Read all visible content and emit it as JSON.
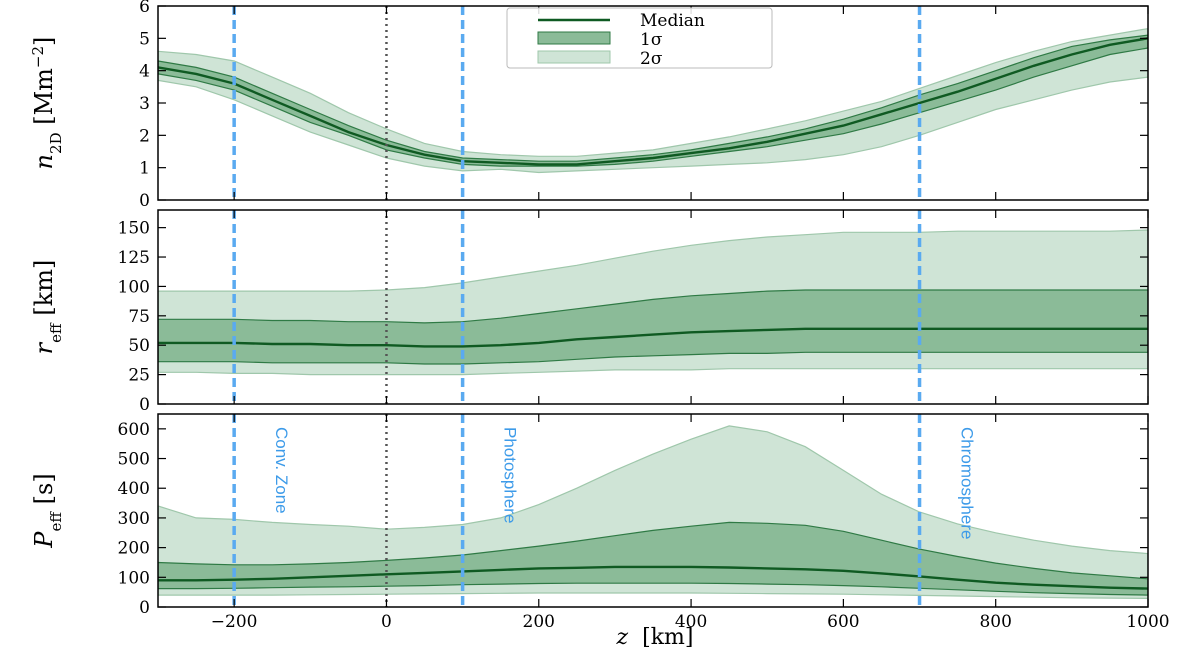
{
  "colors": {
    "median": "#0f5a22",
    "band1": "#8bbb98",
    "band1_edge": "#2f7a45",
    "band2": "#cfe4d6",
    "band2_edge": "#9fc7ab",
    "region_line": "#5aaaf0",
    "zero_line": "#555555"
  },
  "legend": {
    "median": "Median",
    "one_sigma": "1σ",
    "two_sigma": "2σ"
  },
  "chart_data": {
    "type": "line",
    "x_axis": {
      "label": "z",
      "unit": "[km]",
      "range": [
        -300,
        1000
      ],
      "ticks": [
        -200,
        0,
        200,
        400,
        600,
        800,
        1000
      ],
      "tick_labels": [
        "−200",
        "0",
        "200",
        "400",
        "600",
        "800",
        "1000"
      ]
    },
    "x": [
      -300,
      -250,
      -200,
      -150,
      -100,
      -50,
      0,
      50,
      100,
      150,
      200,
      250,
      300,
      350,
      400,
      450,
      500,
      550,
      600,
      650,
      700,
      750,
      800,
      850,
      900,
      950,
      1000
    ],
    "vertical_lines": [
      {
        "x": -200,
        "label": "Conv. Zone",
        "style": "dashed"
      },
      {
        "x": 0,
        "label": "",
        "style": "dotted"
      },
      {
        "x": 100,
        "label": "Photosphere",
        "style": "dashed"
      },
      {
        "x": 700,
        "label": "Chromosphere",
        "style": "dashed"
      }
    ],
    "panels": [
      {
        "ylabel_main": "n",
        "ylabel_sub": "2D",
        "ylabel_unit": "[Mm",
        "ylabel_sup": "−2",
        "ylabel_close": "]",
        "ylim": [
          0,
          6
        ],
        "yticks": [
          0,
          1,
          2,
          3,
          4,
          5,
          6
        ],
        "ytick_labels": [
          "0",
          "1",
          "2",
          "3",
          "4",
          "5",
          "6"
        ],
        "median": [
          4.1,
          3.9,
          3.6,
          3.1,
          2.6,
          2.1,
          1.7,
          1.4,
          1.2,
          1.15,
          1.1,
          1.1,
          1.2,
          1.3,
          1.45,
          1.6,
          1.8,
          2.05,
          2.3,
          2.65,
          3.0,
          3.35,
          3.75,
          4.15,
          4.5,
          4.8,
          5.0
        ],
        "s1_low": [
          3.9,
          3.7,
          3.4,
          2.9,
          2.4,
          2.0,
          1.55,
          1.3,
          1.1,
          1.05,
          1.05,
          1.05,
          1.1,
          1.2,
          1.35,
          1.5,
          1.65,
          1.85,
          2.05,
          2.35,
          2.7,
          3.05,
          3.4,
          3.8,
          4.15,
          4.5,
          4.7
        ],
        "s1_high": [
          4.3,
          4.1,
          3.8,
          3.3,
          2.8,
          2.3,
          1.85,
          1.5,
          1.3,
          1.25,
          1.2,
          1.2,
          1.3,
          1.4,
          1.55,
          1.75,
          1.95,
          2.2,
          2.5,
          2.85,
          3.25,
          3.6,
          4.0,
          4.4,
          4.75,
          4.95,
          5.1
        ],
        "s2_low": [
          3.7,
          3.5,
          3.1,
          2.6,
          2.1,
          1.7,
          1.3,
          1.05,
          0.9,
          0.95,
          0.85,
          0.9,
          0.95,
          1.0,
          1.05,
          1.1,
          1.15,
          1.25,
          1.4,
          1.65,
          2.0,
          2.4,
          2.8,
          3.1,
          3.4,
          3.65,
          3.8
        ],
        "s2_high": [
          4.6,
          4.5,
          4.3,
          3.8,
          3.3,
          2.7,
          2.2,
          1.75,
          1.5,
          1.4,
          1.35,
          1.35,
          1.45,
          1.55,
          1.75,
          1.95,
          2.2,
          2.45,
          2.75,
          3.05,
          3.45,
          3.85,
          4.25,
          4.6,
          4.9,
          5.1,
          5.3
        ]
      },
      {
        "ylabel_main": "r",
        "ylabel_sub": "eff",
        "ylabel_unit": "[km]",
        "ylabel_sup": "",
        "ylabel_close": "",
        "ylim": [
          0,
          165
        ],
        "yticks": [
          0,
          25,
          50,
          75,
          100,
          125,
          150
        ],
        "ytick_labels": [
          "0",
          "25",
          "50",
          "75",
          "100",
          "125",
          "150"
        ],
        "median": [
          52,
          52,
          52,
          51,
          51,
          50,
          50,
          49,
          49,
          50,
          52,
          55,
          57,
          59,
          61,
          62,
          63,
          64,
          64,
          64,
          64,
          64,
          64,
          64,
          64,
          64,
          64
        ],
        "s1_low": [
          36,
          36,
          36,
          35,
          35,
          35,
          35,
          34,
          34,
          35,
          36,
          38,
          40,
          41,
          42,
          43,
          43,
          44,
          44,
          44,
          44,
          44,
          44,
          44,
          44,
          44,
          44
        ],
        "s1_high": [
          72,
          72,
          72,
          71,
          71,
          70,
          70,
          69,
          70,
          73,
          77,
          81,
          85,
          89,
          92,
          94,
          96,
          97,
          97,
          97,
          97,
          97,
          97,
          97,
          97,
          97,
          97
        ],
        "s2_low": [
          27,
          27,
          26,
          26,
          25,
          25,
          25,
          25,
          25,
          26,
          27,
          28,
          29,
          29,
          29,
          30,
          30,
          30,
          30,
          30,
          30,
          30,
          30,
          30,
          30,
          30,
          30
        ],
        "s2_high": [
          96,
          96,
          96,
          96,
          96,
          96,
          97,
          99,
          103,
          108,
          113,
          118,
          124,
          130,
          135,
          139,
          142,
          144,
          146,
          146,
          146,
          147,
          147,
          147,
          147,
          147,
          148
        ]
      },
      {
        "ylabel_main": "P",
        "ylabel_sub": "eff",
        "ylabel_unit": "[s]",
        "ylabel_sup": "",
        "ylabel_close": "",
        "ylim": [
          0,
          650
        ],
        "yticks": [
          0,
          100,
          200,
          300,
          400,
          500,
          600
        ],
        "ytick_labels": [
          "0",
          "100",
          "200",
          "300",
          "400",
          "500",
          "600"
        ],
        "median": [
          90,
          90,
          92,
          95,
          100,
          105,
          110,
          115,
          120,
          125,
          130,
          132,
          135,
          135,
          135,
          133,
          130,
          127,
          122,
          113,
          103,
          92,
          82,
          75,
          70,
          65,
          62
        ],
        "s1_low": [
          62,
          62,
          63,
          65,
          67,
          68,
          70,
          72,
          75,
          77,
          79,
          80,
          80,
          80,
          80,
          79,
          77,
          75,
          72,
          68,
          63,
          58,
          53,
          48,
          45,
          42,
          40
        ],
        "s1_high": [
          150,
          145,
          142,
          142,
          145,
          150,
          157,
          165,
          175,
          190,
          205,
          222,
          240,
          258,
          272,
          285,
          282,
          275,
          255,
          225,
          195,
          170,
          148,
          130,
          115,
          105,
          95
        ],
        "s2_low": [
          40,
          40,
          40,
          40,
          41,
          42,
          43,
          44,
          45,
          46,
          47,
          47,
          47,
          47,
          47,
          46,
          45,
          44,
          43,
          41,
          39,
          37,
          35,
          33,
          31,
          30,
          29
        ],
        "s2_high": [
          340,
          300,
          295,
          285,
          278,
          272,
          262,
          268,
          278,
          300,
          345,
          400,
          460,
          515,
          565,
          610,
          590,
          540,
          460,
          380,
          320,
          280,
          250,
          225,
          205,
          190,
          180
        ]
      }
    ]
  }
}
